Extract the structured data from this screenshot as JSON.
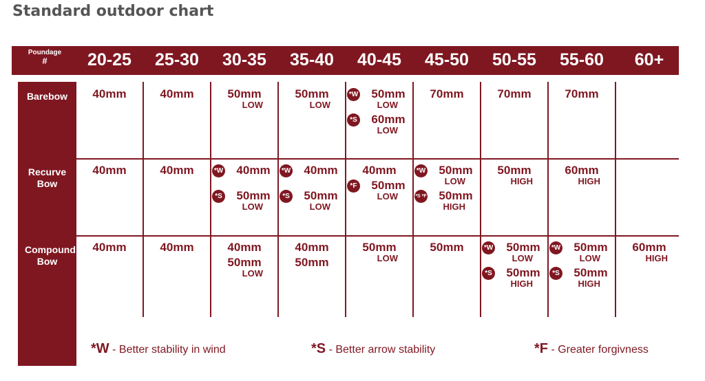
{
  "title": "Standard outdoor chart",
  "header": {
    "poundage_label": "Poundage",
    "poundage_symbol": "#",
    "ranges": [
      "20-25",
      "25-30",
      "30-35",
      "35-40",
      "40-45",
      "45-50",
      "50-55",
      "55-60",
      "60+"
    ]
  },
  "rows": [
    {
      "label": "Barebow",
      "cells": [
        [
          {
            "size": "40mm"
          }
        ],
        [
          {
            "size": "40mm"
          }
        ],
        [
          {
            "size": "50mm",
            "level": "LOW"
          }
        ],
        [
          {
            "size": "50mm",
            "level": "LOW"
          }
        ],
        [
          {
            "badge": "*W",
            "size": "50mm",
            "level": "LOW"
          },
          {
            "badge": "*S",
            "size": "60mm",
            "level": "LOW"
          }
        ],
        [
          {
            "size": "70mm"
          }
        ],
        [
          {
            "size": "70mm"
          }
        ],
        [
          {
            "size": "70mm"
          }
        ],
        []
      ]
    },
    {
      "label": "Recurve Bow",
      "cells": [
        [
          {
            "size": "40mm"
          }
        ],
        [
          {
            "size": "40mm"
          }
        ],
        [
          {
            "badge": "*W",
            "size": "40mm"
          },
          {
            "badge": "*S",
            "size": "50mm",
            "level": "LOW"
          }
        ],
        [
          {
            "badge": "*W",
            "size": "40mm"
          },
          {
            "badge": "*S",
            "size": "50mm",
            "level": "LOW"
          }
        ],
        [
          {
            "size": "40mm"
          },
          {
            "badge": "*F",
            "size": "50mm",
            "level": "LOW"
          }
        ],
        [
          {
            "badge": "*W",
            "size": "50mm",
            "level": "LOW"
          },
          {
            "badge": "*S *F",
            "size": "50mm",
            "level": "HIGH"
          }
        ],
        [
          {
            "size": "50mm",
            "level": "HIGH"
          }
        ],
        [
          {
            "size": "60mm",
            "level": "HIGH"
          }
        ],
        []
      ]
    },
    {
      "label": "Compound Bow",
      "cells": [
        [
          {
            "size": "40mm"
          }
        ],
        [
          {
            "size": "40mm"
          }
        ],
        [
          {
            "size": "40mm"
          },
          {
            "size": "50mm",
            "level": "LOW"
          }
        ],
        [
          {
            "size": "40mm"
          },
          {
            "size": "50mm"
          }
        ],
        [
          {
            "size": "50mm",
            "level": "LOW"
          }
        ],
        [
          {
            "size": "50mm"
          }
        ],
        [
          {
            "badge": "*W",
            "size": "50mm",
            "level": "LOW"
          },
          {
            "badge": "*S",
            "size": "50mm",
            "level": "HIGH"
          }
        ],
        [
          {
            "badge": "*W",
            "size": "50mm",
            "level": "LOW"
          },
          {
            "badge": "*S",
            "size": "50mm",
            "level": "HIGH"
          }
        ],
        [
          {
            "size": "60mm",
            "level": "HIGH"
          }
        ]
      ]
    }
  ],
  "legend": [
    {
      "key": "*W",
      "text": "- Better stability in wind"
    },
    {
      "key": "*S",
      "text": "- Better arrow stability"
    },
    {
      "key": "*F",
      "text": "- Greater forgivness"
    }
  ],
  "colors": {
    "accent": "#7f1721"
  }
}
